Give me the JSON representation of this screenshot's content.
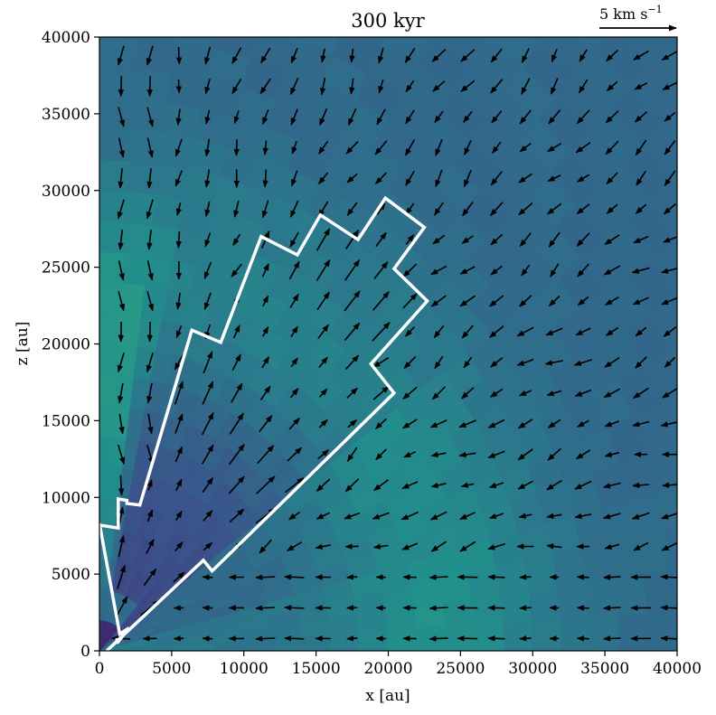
{
  "chart_data": {
    "type": "heatmap",
    "title": "300 kyr",
    "xlabel": "x [au]",
    "ylabel": "z [au]",
    "xlim": [
      0,
      40000
    ],
    "ylim": [
      0,
      40000
    ],
    "xticks": [
      0,
      5000,
      10000,
      15000,
      20000,
      25000,
      30000,
      35000,
      40000
    ],
    "yticks": [
      0,
      5000,
      10000,
      15000,
      20000,
      25000,
      30000,
      35000,
      40000
    ],
    "xtick_labels": [
      "0",
      "5000",
      "10000",
      "15000",
      "20000",
      "25000",
      "30000",
      "35000",
      "40000"
    ],
    "ytick_labels": [
      "0",
      "5000",
      "10000",
      "15000",
      "20000",
      "25000",
      "30000",
      "35000",
      "40000"
    ],
    "grid": false,
    "quiver_key": {
      "label": "5 km s",
      "exponent": "−1",
      "speed": 5,
      "placement": "top-right"
    },
    "colormap": [
      "#440154",
      "#3b528b",
      "#21918c",
      "#5ec962",
      "#fde725"
    ],
    "outflow_boundary": {
      "color": "#ffffff",
      "x": [
        500,
        1200,
        1200,
        1300,
        1900,
        1900,
        1400,
        0,
        0,
        1300,
        1300,
        1900,
        1900,
        2800,
        6400,
        8400,
        11200,
        13700,
        15300,
        17900,
        19800,
        22500,
        20400,
        22700,
        18800,
        20400,
        7800,
        7200,
        500
      ],
      "y": [
        0,
        600,
        800,
        600,
        1300,
        1400,
        1100,
        8300,
        8200,
        8000,
        9900,
        9800,
        9600,
        9500,
        20900,
        20100,
        27000,
        25800,
        28400,
        26800,
        29500,
        27600,
        24900,
        22800,
        18700,
        16800,
        5200,
        5900,
        0
      ]
    }
  }
}
